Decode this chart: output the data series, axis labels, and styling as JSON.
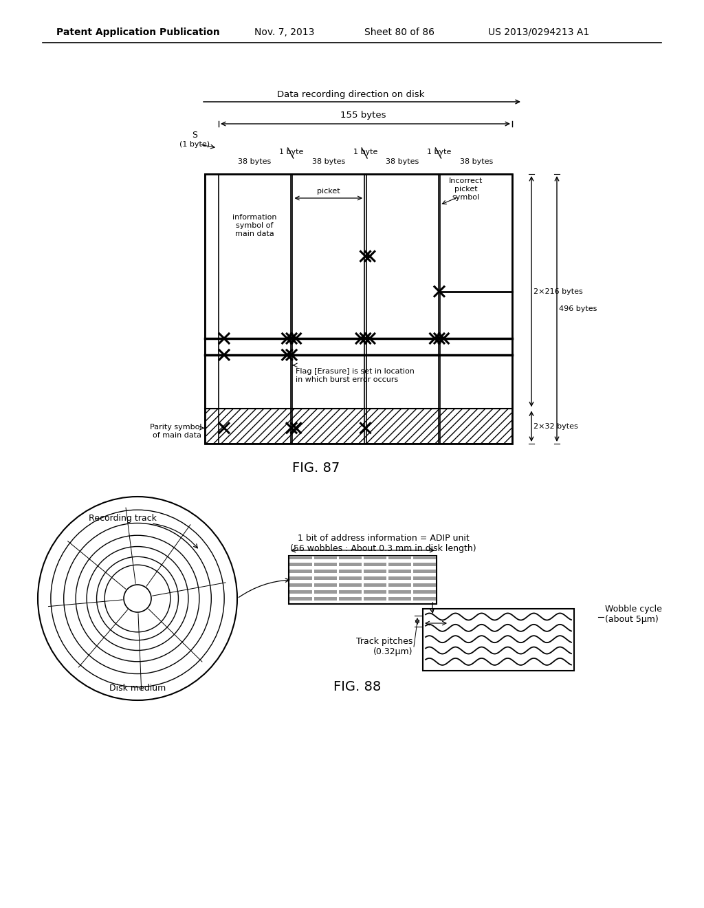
{
  "bg_color": "#ffffff",
  "header_text": "Patent Application Publication",
  "header_date": "Nov. 7, 2013",
  "header_sheet": "Sheet 80 of 86",
  "header_patent": "US 2013/0294213 A1",
  "fig87_title": "FIG. 87",
  "fig88_title": "FIG. 88",
  "fig87_label_direction": "Data recording direction on disk",
  "fig87_label_155": "155 bytes",
  "fig87_label_1byte": "1 byte",
  "fig87_label_38bytes": "38 bytes",
  "fig87_label_picket": "picket",
  "fig87_label_incorrect": "Incorrect\npicket\nsymbol",
  "fig87_label_info": "information\nsymbol of\nmain data",
  "fig87_label_flag": "Flag [Erasure] is set in location\nin which burst error occurs",
  "fig87_label_parity": "Parity symbol\nof main data",
  "fig87_label_2x216": "2×216 bytes",
  "fig87_label_496": "496 bytes",
  "fig87_label_2x32": "2×32 bytes",
  "fig88_label_recording_track": "Recording track",
  "fig88_label_disk_medium": "Disk medium",
  "fig88_label_adip": "1 bit of address information = ADIP unit\n(56 wobbles : About 0.3 mm in disk length)",
  "fig88_label_wobble": "Wobble cycle\n(about 5μm)",
  "fig88_label_track": "Track pitches\n(0.32μm)"
}
